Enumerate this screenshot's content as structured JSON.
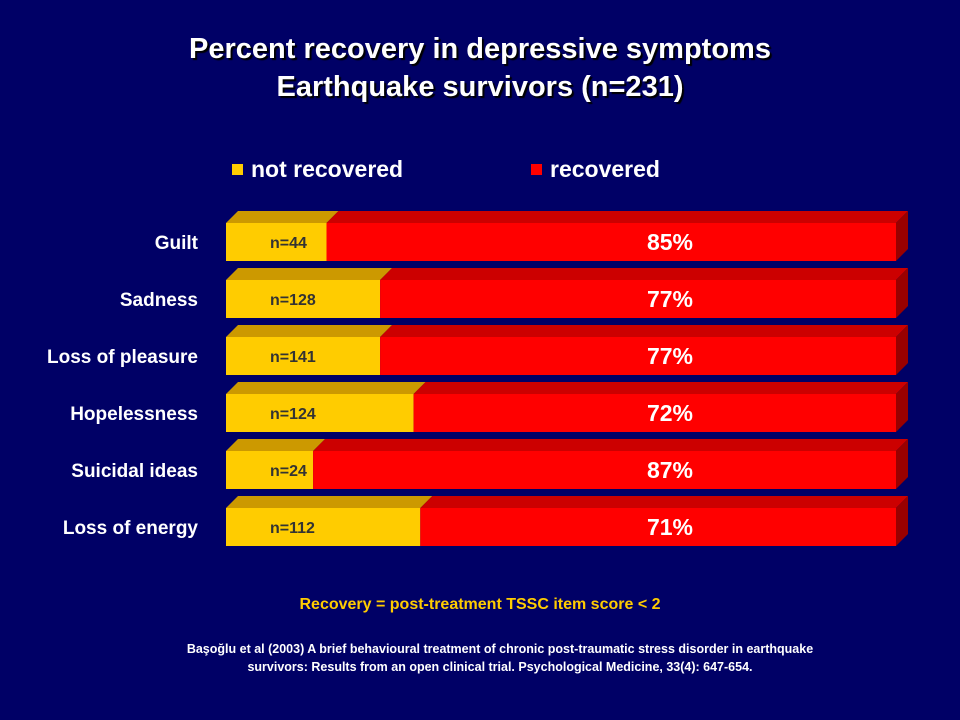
{
  "title_line1": "Percent recovery in depressive symptoms",
  "title_line2": "Earthquake survivors (n=231)",
  "footnote": "Recovery = post-treatment TSSC item score < 2",
  "citation_line1": "Başoğlu et al (2003) A brief behavioural treatment of chronic post-traumatic stress disorder in earthquake",
  "citation_line2": "survivors: Results from an open clinical trial. Psychological Medicine, 33(4): 647-654.",
  "colors": {
    "background": "#000066",
    "not_recovered": "#ffcc00",
    "recovered": "#ff0000"
  },
  "chart_data": {
    "type": "bar",
    "orientation": "horizontal",
    "stacked": true,
    "percent_stacked": true,
    "categories": [
      "Guilt",
      "Sadness",
      "Loss of pleasure",
      "Hopelessness",
      "Suicidal ideas",
      "Loss of energy"
    ],
    "series": [
      {
        "name": "not recovered",
        "values": [
          15,
          23,
          23,
          28,
          13,
          29
        ],
        "labels": [
          "n=44",
          "n=128",
          "n=141",
          "n=124",
          "n=24",
          "n=112"
        ]
      },
      {
        "name": "recovered",
        "values": [
          85,
          77,
          77,
          72,
          87,
          71
        ],
        "labels": [
          "85%",
          "77%",
          "77%",
          "72%",
          "87%",
          "71%"
        ]
      }
    ],
    "xlim": [
      0,
      100
    ],
    "legend_position": "top",
    "grid": false
  }
}
